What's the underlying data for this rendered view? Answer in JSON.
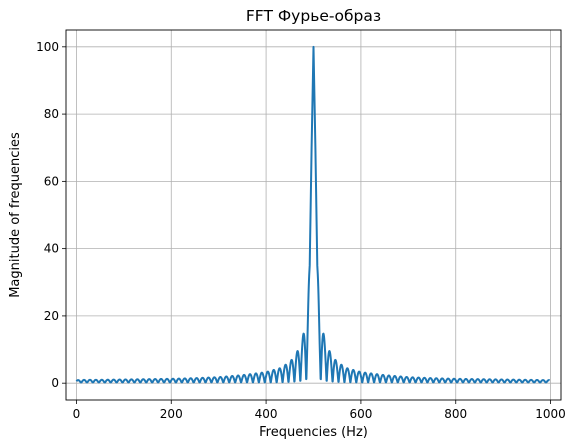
{
  "chart_data": {
    "type": "line",
    "title": "FFT Фурье-образ",
    "xlabel": "Frequencies (Hz)",
    "ylabel": "Magnitude of frequencies",
    "xlim": [
      -22,
      1022
    ],
    "ylim": [
      -5,
      105
    ],
    "xticks": [
      0,
      200,
      400,
      600,
      800,
      1000
    ],
    "yticks": [
      0,
      20,
      40,
      60,
      80,
      100
    ],
    "grid": true,
    "series": [
      {
        "name": "",
        "color": "#1f77b4",
        "line_width": 2,
        "x_range": [
          0,
          998
        ],
        "peak": {
          "x": 500,
          "y": 100
        },
        "points": [
          [
            0,
            0.9
          ],
          [
            20,
            1.0
          ],
          [
            50,
            1.0
          ],
          [
            100,
            1.1
          ],
          [
            150,
            1.2
          ],
          [
            200,
            1.3
          ],
          [
            250,
            1.5
          ],
          [
            300,
            1.8
          ],
          [
            350,
            2.4
          ],
          [
            400,
            3.3
          ],
          [
            430,
            4.5
          ],
          [
            450,
            6.3
          ],
          [
            460,
            8.0
          ],
          [
            470,
            10.5
          ],
          [
            477,
            13.5
          ],
          [
            483,
            17.5
          ],
          [
            487,
            21.8
          ],
          [
            492,
            35
          ],
          [
            496,
            70
          ],
          [
            500,
            100
          ],
          [
            504,
            70
          ],
          [
            508,
            35
          ],
          [
            513,
            21.8
          ],
          [
            517,
            17.5
          ],
          [
            523,
            13.5
          ],
          [
            530,
            10.5
          ],
          [
            540,
            8.0
          ],
          [
            550,
            6.3
          ],
          [
            570,
            4.5
          ],
          [
            600,
            3.3
          ],
          [
            650,
            2.4
          ],
          [
            700,
            1.8
          ],
          [
            750,
            1.5
          ],
          [
            800,
            1.3
          ],
          [
            850,
            1.2
          ],
          [
            900,
            1.1
          ],
          [
            950,
            1.0
          ],
          [
            998,
            0.9
          ]
        ]
      }
    ]
  }
}
